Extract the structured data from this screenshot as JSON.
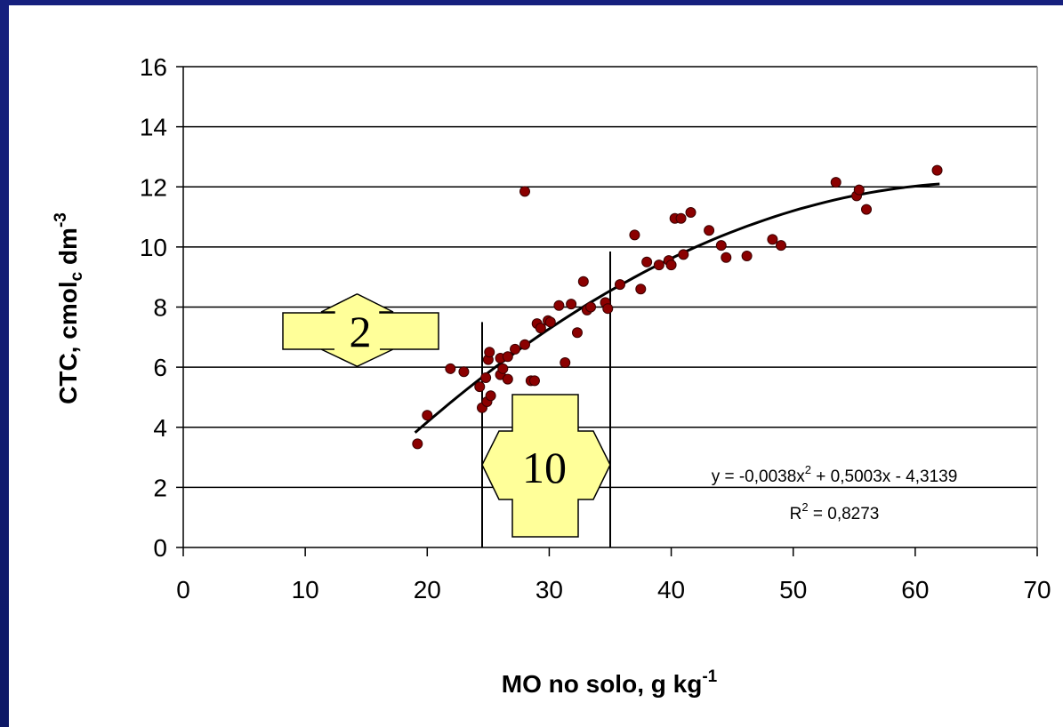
{
  "colors": {
    "background": "#16207e",
    "point_fill": "#8b0000",
    "arrow_fill": "#ffff99",
    "grid": "#000000"
  },
  "chart_data": {
    "type": "scatter",
    "xlabel": "MO no solo, g kg",
    "xlabel_sup": "-1",
    "ylabel_main": "CTC, cmol",
    "ylabel_sub": "c",
    "ylabel_rest": " dm",
    "ylabel_sup": "-3",
    "xlim": [
      0,
      70
    ],
    "ylim": [
      0,
      16
    ],
    "x_ticks": [
      "0",
      "10",
      "20",
      "30",
      "40",
      "50",
      "60",
      "70"
    ],
    "y_ticks": [
      "0",
      "2",
      "4",
      "6",
      "8",
      "10",
      "12",
      "14",
      "16"
    ],
    "grid": "horizontal",
    "points": [
      [
        19.2,
        3.45
      ],
      [
        20.0,
        4.4
      ],
      [
        21.9,
        5.95
      ],
      [
        23.0,
        5.85
      ],
      [
        24.3,
        5.35
      ],
      [
        24.5,
        4.65
      ],
      [
        24.8,
        5.65
      ],
      [
        24.9,
        4.85
      ],
      [
        25.0,
        6.25
      ],
      [
        25.1,
        6.5
      ],
      [
        25.2,
        5.05
      ],
      [
        26.0,
        6.3
      ],
      [
        26.0,
        5.75
      ],
      [
        26.2,
        5.95
      ],
      [
        26.6,
        5.6
      ],
      [
        26.6,
        6.35
      ],
      [
        27.2,
        6.6
      ],
      [
        28.0,
        6.75
      ],
      [
        28.0,
        11.85
      ],
      [
        28.5,
        5.55
      ],
      [
        28.8,
        5.55
      ],
      [
        29.0,
        7.45
      ],
      [
        29.3,
        7.3
      ],
      [
        29.9,
        7.55
      ],
      [
        30.1,
        7.5
      ],
      [
        30.8,
        8.05
      ],
      [
        31.3,
        6.15
      ],
      [
        31.8,
        8.1
      ],
      [
        32.3,
        7.15
      ],
      [
        32.8,
        8.85
      ],
      [
        33.1,
        7.9
      ],
      [
        33.4,
        8.0
      ],
      [
        34.6,
        8.15
      ],
      [
        34.8,
        7.95
      ],
      [
        35.8,
        8.75
      ],
      [
        37.0,
        10.4
      ],
      [
        37.5,
        8.6
      ],
      [
        38.0,
        9.5
      ],
      [
        39.0,
        9.4
      ],
      [
        39.8,
        9.55
      ],
      [
        40.0,
        9.4
      ],
      [
        40.3,
        10.95
      ],
      [
        40.8,
        10.95
      ],
      [
        41.0,
        9.75
      ],
      [
        41.6,
        11.15
      ],
      [
        43.1,
        10.55
      ],
      [
        44.1,
        10.05
      ],
      [
        44.5,
        9.65
      ],
      [
        46.2,
        9.7
      ],
      [
        48.3,
        10.25
      ],
      [
        49.0,
        10.05
      ],
      [
        53.5,
        12.15
      ],
      [
        55.2,
        11.7
      ],
      [
        55.4,
        11.9
      ],
      [
        56.0,
        11.25
      ],
      [
        61.8,
        12.55
      ]
    ],
    "trendline": {
      "type": "polynomial",
      "a": -0.0038,
      "b": 0.5003,
      "c": -4.3139,
      "x_range": [
        19,
        62
      ],
      "equation_text": "y = -0,0038x",
      "equation_sup": "2",
      "equation_rest": " + 0,5003x - 4,3139",
      "r2_text": "R",
      "r2_sup": "2",
      "r2_rest": " = 0,8273"
    },
    "vertical_lines_x": [
      24.5,
      35
    ],
    "annotations": {
      "vertical_arrow_label": "2",
      "horizontal_arrow_label": "10"
    }
  }
}
